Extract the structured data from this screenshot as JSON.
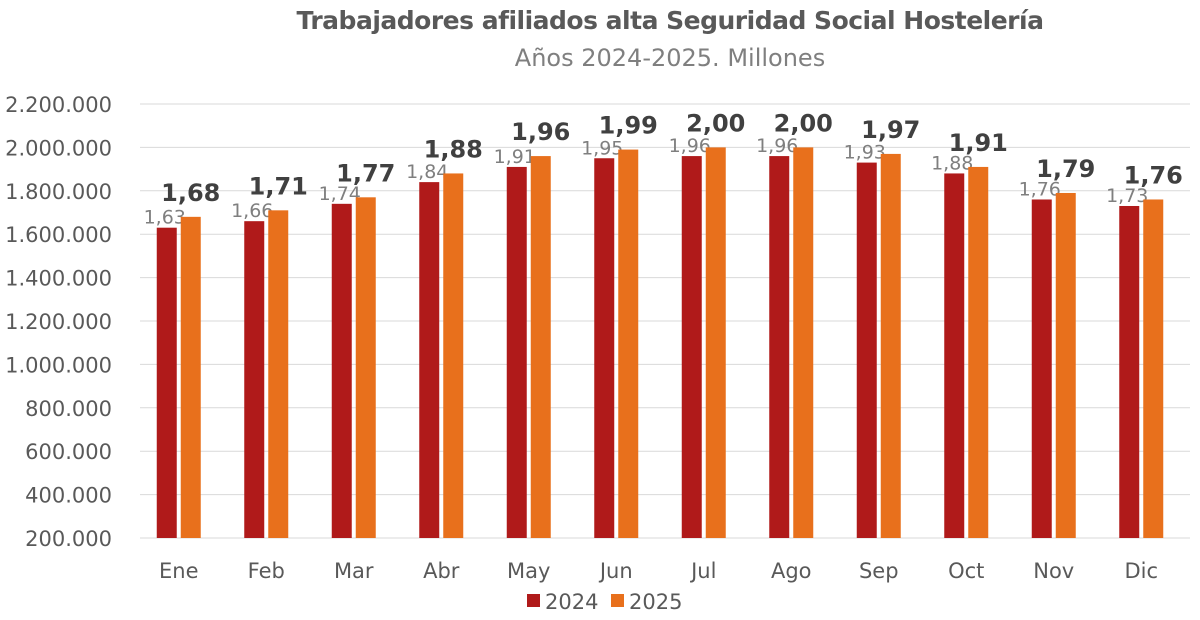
{
  "chart_data": {
    "type": "bar",
    "title": "Trabajadores afiliados alta Seguridad Social Hostelería",
    "subtitle": "Años 2024-2025. Millones",
    "xlabel": "",
    "ylabel": "",
    "ylim": [
      200000,
      2200000
    ],
    "yticks": [
      "200.000",
      "400.000",
      "600.000",
      "800.000",
      "1.000.000",
      "1.200.000",
      "1.400.000",
      "1.600.000",
      "1.800.000",
      "2.000.000",
      "2.200.000"
    ],
    "grid": true,
    "legend_position": "bottom",
    "categories": [
      "Ene",
      "Feb",
      "Mar",
      "Abr",
      "May",
      "Jun",
      "Jul",
      "Ago",
      "Sep",
      "Oct",
      "Nov",
      "Dic"
    ],
    "series": [
      {
        "name": "2024",
        "color": "#B01A1A",
        "values": [
          1630000,
          1660000,
          1740000,
          1840000,
          1910000,
          1950000,
          1960000,
          1960000,
          1930000,
          1880000,
          1760000,
          1730000
        ],
        "labels": [
          "1,63",
          "1,66",
          "1,74",
          "1,84",
          "1,91",
          "1,95",
          "1,96",
          "1,96",
          "1,93",
          "1,88",
          "1,76",
          "1,73"
        ]
      },
      {
        "name": "2025",
        "color": "#E8701C",
        "values": [
          1680000,
          1710000,
          1770000,
          1880000,
          1960000,
          1990000,
          2000000,
          2000000,
          1970000,
          1910000,
          1790000,
          1760000
        ],
        "labels": [
          "1,68",
          "1,71",
          "1,77",
          "1,88",
          "1,96",
          "1,99",
          "2,00",
          "2,00",
          "1,97",
          "1,91",
          "1,79",
          "1,76"
        ]
      }
    ]
  }
}
